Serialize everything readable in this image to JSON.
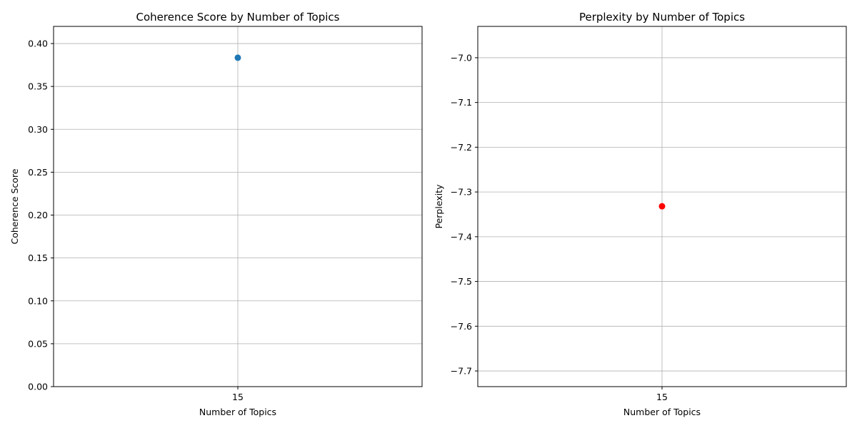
{
  "chart_data": [
    {
      "type": "scatter",
      "title": "Coherence Score by Number of Topics",
      "xlabel": "Number of Topics",
      "ylabel": "Coherence Score",
      "categories": [
        "15"
      ],
      "x": [
        15
      ],
      "values": [
        0.3835
      ],
      "color": "#1f77b4",
      "ylim": [
        0,
        0.42
      ],
      "yticks": [
        0.0,
        0.05,
        0.1,
        0.15,
        0.2,
        0.25,
        0.3,
        0.35,
        0.4
      ],
      "ytick_labels": [
        "0.00",
        "0.05",
        "0.10",
        "0.15",
        "0.20",
        "0.25",
        "0.30",
        "0.35",
        "0.40"
      ],
      "grid": true
    },
    {
      "type": "scatter",
      "title": "Perplexity by Number of Topics",
      "xlabel": "Number of Topics",
      "ylabel": "Perplexity",
      "categories": [
        "15"
      ],
      "x": [
        15
      ],
      "values": [
        -7.332
      ],
      "color": "#ff0000",
      "ylim": [
        -7.735,
        -6.93
      ],
      "yticks": [
        -7.7,
        -7.6,
        -7.5,
        -7.4,
        -7.3,
        -7.2,
        -7.1,
        -7.0
      ],
      "ytick_labels": [
        "−7.7",
        "−7.6",
        "−7.5",
        "−7.4",
        "−7.3",
        "−7.2",
        "−7.1",
        "−7.0"
      ],
      "grid": true
    }
  ]
}
